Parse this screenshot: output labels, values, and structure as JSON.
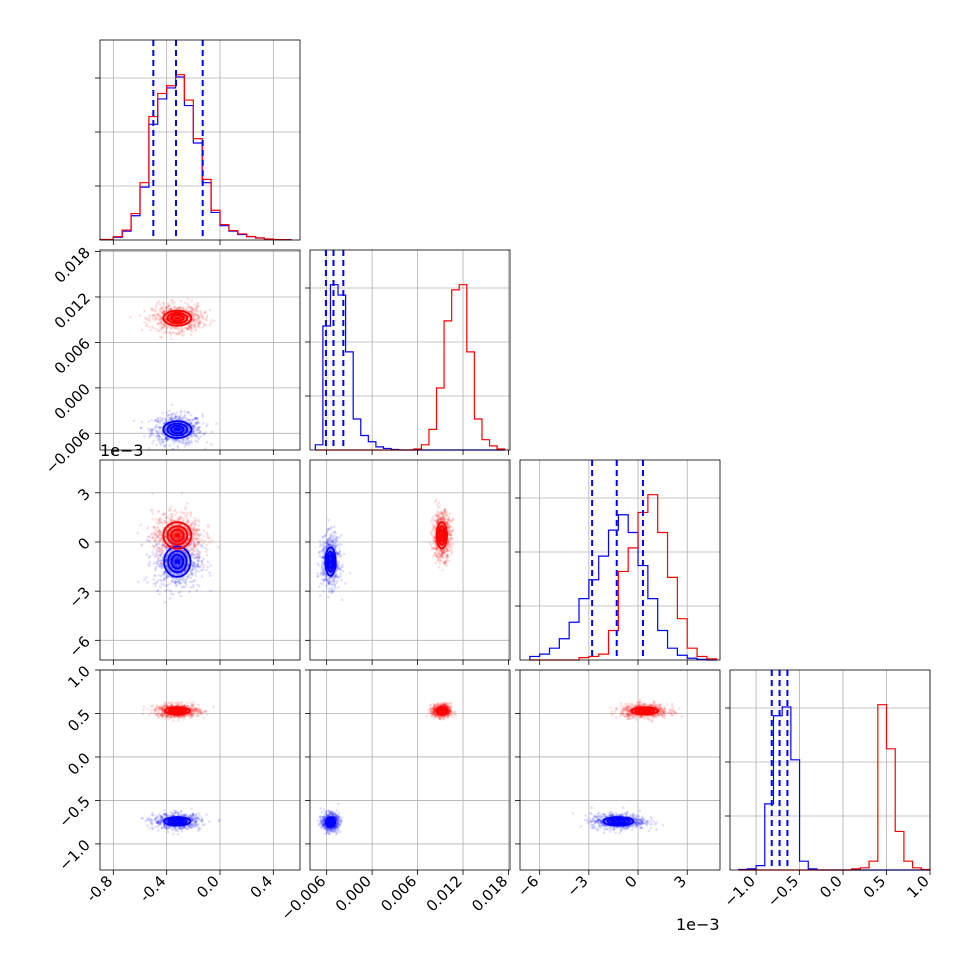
{
  "figure": {
    "type": "corner-plot"
  },
  "colors": {
    "series_a": "#0000ff",
    "series_b": "#ff0000",
    "grid": "#b0b0b0",
    "axes": "#000000"
  },
  "offset_labels": {
    "p2": "1e−3"
  },
  "chart_data": [
    {
      "type": "histogram",
      "panel": "diag-0",
      "xlim": [
        -0.9,
        0.6
      ],
      "grid": true,
      "bin_edges": [
        -0.9,
        -0.8,
        -0.733,
        -0.667,
        -0.6,
        -0.533,
        -0.467,
        -0.4,
        -0.333,
        -0.267,
        -0.2,
        -0.133,
        -0.067,
        0.0,
        0.067,
        0.133,
        0.2,
        0.267,
        0.333,
        0.4,
        0.467,
        0.533
      ],
      "series": [
        {
          "name": "",
          "color": "#0000ff",
          "values": [
            0.4,
            2.5,
            8,
            22,
            48,
            105,
            128,
            138,
            148,
            122,
            88,
            52,
            25,
            13,
            8,
            5,
            3,
            1.8,
            0.8,
            0.4,
            0.2
          ]
        },
        {
          "name": "",
          "color": "#ff0000",
          "values": [
            0.5,
            3,
            9,
            24,
            52,
            112,
            133,
            140,
            150,
            127,
            92,
            55,
            27,
            14,
            8.5,
            5.5,
            3.2,
            1.8,
            0.9,
            0.4,
            0.2
          ]
        }
      ],
      "quantile_lines": [
        -0.5,
        -0.33,
        -0.13
      ]
    },
    {
      "type": "histogram",
      "panel": "diag-1",
      "xlim": [
        -0.0082,
        0.0182
      ],
      "grid": true,
      "bin_edges": [
        -0.0075,
        -0.0065,
        -0.0055,
        -0.0045,
        -0.0035,
        -0.0025,
        -0.0015,
        -0.0005,
        0.0005,
        0.0015,
        0.0025,
        0.0035,
        0.0045,
        0.0055,
        0.0065,
        0.0075,
        0.0085,
        0.0095,
        0.0105,
        0.0115,
        0.0125,
        0.0135,
        0.0145,
        0.0155,
        0.0165,
        0.0175
      ],
      "series": [
        {
          "name": "",
          "color": "#0000ff",
          "values": [
            5,
            120,
            160,
            150,
            95,
            30,
            14,
            8,
            3,
            1.5,
            0.5,
            0,
            0,
            0,
            0,
            0,
            0,
            0,
            0,
            0,
            0,
            0,
            0,
            0,
            0
          ]
        },
        {
          "name": "",
          "color": "#ff0000",
          "values": [
            0,
            0,
            0,
            0,
            0,
            0,
            0,
            0,
            0,
            0,
            0,
            0,
            0,
            1,
            5,
            20,
            60,
            125,
            155,
            160,
            95,
            30,
            10,
            4,
            1
          ]
        }
      ],
      "quantile_lines": [
        -0.0061,
        -0.0051,
        -0.0038
      ]
    },
    {
      "type": "histogram",
      "panel": "diag-2",
      "xlim": [
        -7.2,
        5.0
      ],
      "x_offset": "1e-3",
      "grid": true,
      "bin_edges": [
        -6.6,
        -6.0,
        -5.4,
        -4.8,
        -4.2,
        -3.6,
        -3.0,
        -2.4,
        -1.8,
        -1.2,
        -0.6,
        0.0,
        0.6,
        1.2,
        1.8,
        2.4,
        3.0,
        3.6,
        4.2,
        4.8
      ],
      "series": [
        {
          "name": "",
          "color": "#0000ff",
          "values": [
            3,
            5,
            10,
            18,
            32,
            52,
            68,
            88,
            110,
            123,
            108,
            80,
            52,
            25,
            10,
            4,
            1.5,
            0.5,
            0
          ]
        },
        {
          "name": "",
          "color": "#ff0000",
          "values": [
            0,
            0,
            0,
            0,
            0,
            2,
            3,
            5,
            25,
            75,
            95,
            125,
            140,
            108,
            70,
            35,
            10,
            3,
            1
          ]
        }
      ],
      "quantile_lines": [
        -2.8,
        -1.3,
        0.3
      ]
    },
    {
      "type": "histogram",
      "panel": "diag-3",
      "xlim": [
        -1.3,
        1.0
      ],
      "grid": true,
      "bin_edges": [
        -1.2,
        -1.1,
        -1.0,
        -0.9,
        -0.8,
        -0.7,
        -0.6,
        -0.5,
        -0.4,
        -0.3,
        -0.2,
        -0.1,
        0.0,
        0.1,
        0.2,
        0.3,
        0.4,
        0.5,
        0.6,
        0.7,
        0.8,
        0.9,
        1.0
      ],
      "series": [
        {
          "name": "",
          "color": "#0000ff",
          "values": [
            0.5,
            1,
            4,
            60,
            140,
            148,
            100,
            8,
            1,
            0,
            0,
            0,
            0,
            0,
            0,
            0,
            0,
            0,
            0,
            0,
            0,
            0
          ]
        },
        {
          "name": "",
          "color": "#ff0000",
          "values": [
            0,
            0,
            0,
            0,
            0,
            0,
            0,
            0,
            0,
            0,
            0,
            0,
            0,
            1,
            2,
            8,
            150,
            110,
            35,
            8,
            2,
            0.5
          ]
        }
      ],
      "quantile_lines": [
        -0.82,
        -0.73,
        -0.64
      ]
    },
    {
      "type": "scatter-contour",
      "panel": "p1-vs-p0",
      "x": "p0",
      "y": "p1",
      "xlim": [
        -0.9,
        0.6
      ],
      "ylim": [
        -0.0082,
        0.0182
      ],
      "clusters": [
        {
          "color": "#0000ff",
          "center": [
            -0.32,
            -0.0055
          ],
          "spread": [
            0.17,
            0.0018
          ]
        },
        {
          "color": "#ff0000",
          "center": [
            -0.32,
            0.0092
          ],
          "spread": [
            0.17,
            0.0016
          ]
        }
      ]
    },
    {
      "type": "scatter-contour",
      "panel": "p2-vs-p0",
      "x": "p0",
      "y": "p2",
      "xlim": [
        -0.9,
        0.6
      ],
      "ylim": [
        -7.2,
        5.0
      ],
      "clusters": [
        {
          "color": "#0000ff",
          "center": [
            -0.32,
            -1.2
          ],
          "spread": [
            0.16,
            1.5
          ]
        },
        {
          "color": "#ff0000",
          "center": [
            -0.32,
            0.4
          ],
          "spread": [
            0.17,
            1.3
          ]
        }
      ]
    },
    {
      "type": "scatter-contour",
      "panel": "p2-vs-p1",
      "x": "p1",
      "y": "p2",
      "xlim": [
        -0.0082,
        0.0182
      ],
      "ylim": [
        -7.2,
        5.0
      ],
      "clusters": [
        {
          "color": "#0000ff",
          "center": [
            -0.0055,
            -1.2
          ],
          "spread": [
            0.0011,
            1.4
          ]
        },
        {
          "color": "#ff0000",
          "center": [
            0.0092,
            0.4
          ],
          "spread": [
            0.0011,
            1.3
          ]
        }
      ]
    },
    {
      "type": "scatter-contour",
      "panel": "p3-vs-p0",
      "x": "p0",
      "y": "p3",
      "xlim": [
        -0.9,
        0.6
      ],
      "ylim": [
        -1.3,
        1.0
      ],
      "clusters": [
        {
          "color": "#0000ff",
          "center": [
            -0.32,
            -0.74
          ],
          "spread": [
            0.16,
            0.08
          ]
        },
        {
          "color": "#ff0000",
          "center": [
            -0.32,
            0.53
          ],
          "spread": [
            0.15,
            0.07
          ]
        }
      ]
    },
    {
      "type": "scatter-contour",
      "panel": "p3-vs-p1",
      "x": "p1",
      "y": "p3",
      "xlim": [
        -0.0082,
        0.0182
      ],
      "ylim": [
        -1.3,
        1.0
      ],
      "clusters": [
        {
          "color": "#0000ff",
          "center": [
            -0.0055,
            -0.75
          ],
          "spread": [
            0.001,
            0.09
          ]
        },
        {
          "color": "#ff0000",
          "center": [
            0.0092,
            0.53
          ],
          "spread": [
            0.0011,
            0.07
          ]
        }
      ]
    },
    {
      "type": "scatter-contour",
      "panel": "p3-vs-p2",
      "x": "p2",
      "y": "p3",
      "xlim": [
        -7.2,
        5.0
      ],
      "ylim": [
        -1.3,
        1.0
      ],
      "clusters": [
        {
          "color": "#0000ff",
          "center": [
            -1.2,
            -0.74
          ],
          "spread": [
            1.5,
            0.08
          ]
        },
        {
          "color": "#ff0000",
          "center": [
            0.4,
            0.53
          ],
          "spread": [
            1.3,
            0.07
          ]
        }
      ]
    }
  ],
  "ticks": {
    "p0": [
      "-0.8",
      "-0.4",
      "0.0",
      "0.4"
    ],
    "p0_values": [
      -0.8,
      -0.4,
      0.0,
      0.4
    ],
    "p1": [
      "−0.006",
      "0.000",
      "0.006",
      "0.012",
      "0.018"
    ],
    "p1_values": [
      -0.006,
      0.0,
      0.006,
      0.012,
      0.018
    ],
    "p2": [
      "−6",
      "−3",
      "0",
      "3"
    ],
    "p2_values": [
      -6,
      -3,
      0,
      3
    ],
    "p3": [
      "−1.0",
      "−0.5",
      "0.0",
      "0.5",
      "1.0"
    ],
    "p3_values": [
      -1.0,
      -0.5,
      0.0,
      0.5,
      1.0
    ]
  }
}
